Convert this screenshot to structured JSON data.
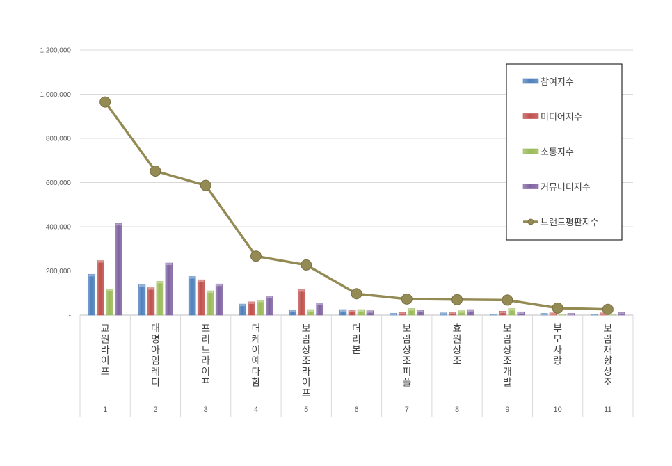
{
  "chart_data": {
    "type": "bar",
    "x": [
      "1",
      "2",
      "3",
      "4",
      "5",
      "6",
      "7",
      "8",
      "9",
      "10",
      "11"
    ],
    "categories": [
      "교원라이프",
      "대명아임레디",
      "프리드라이프",
      "더케이예다함",
      "보람상조라이프",
      "더리본",
      "보람상조피플",
      "효원상조",
      "보람상조개발",
      "부모사랑",
      "보람재향상조"
    ],
    "series": [
      {
        "name": "참여지수",
        "type": "bar",
        "color": "#4f81bd",
        "values": [
          185000,
          137000,
          175000,
          50000,
          22000,
          25000,
          8000,
          10000,
          5000,
          8000,
          3000
        ]
      },
      {
        "name": "미디어지수",
        "type": "bar",
        "color": "#c0504d",
        "values": [
          247000,
          124000,
          160000,
          60000,
          115000,
          23000,
          12000,
          13000,
          18000,
          10000,
          10000
        ]
      },
      {
        "name": "소통지수",
        "type": "bar",
        "color": "#9bbb59",
        "values": [
          118000,
          153000,
          110000,
          68000,
          25000,
          25000,
          30000,
          20000,
          30000,
          5000,
          3000
        ]
      },
      {
        "name": "커뮤니티지수",
        "type": "bar",
        "color": "#8064a2",
        "values": [
          415000,
          236000,
          141000,
          85000,
          55000,
          20000,
          22000,
          25000,
          15000,
          8000,
          12000
        ]
      },
      {
        "name": "브랜드평판지수",
        "type": "line",
        "color": "#948a54",
        "values": [
          965000,
          652000,
          587000,
          267000,
          227000,
          97000,
          73000,
          70000,
          68000,
          32000,
          26000
        ]
      }
    ],
    "yticks": [
      "-",
      "200,000",
      "400,000",
      "600,000",
      "800,000",
      "1,000,000",
      "1,200,000"
    ],
    "ylim": [
      0,
      1200000
    ],
    "grid": true,
    "legend": "right"
  }
}
